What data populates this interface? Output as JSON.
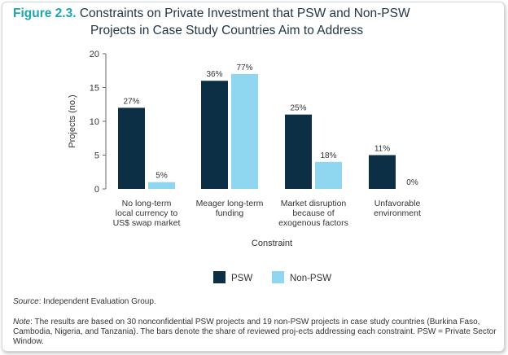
{
  "figure": {
    "label": "Figure 2.3.",
    "title_line1": "Constraints on Private Investment that PSW and Non-PSW",
    "title_line2": "Projects in Case Study Countries Aim to Address"
  },
  "chart_data": {
    "type": "bar",
    "ylabel": "Projects (no.)",
    "xlabel": "Constraint",
    "ylim": [
      0,
      20
    ],
    "yticks": [
      0,
      5,
      10,
      15,
      20
    ],
    "grid": false,
    "legend_position": "bottom-center",
    "categories": [
      [
        "No long-term",
        "local currency to",
        "US$ swap market"
      ],
      [
        "Meager long-term",
        "funding"
      ],
      [
        "Market disruption",
        "because of",
        "exogenous factors"
      ],
      [
        "Unfavorable",
        "environment"
      ]
    ],
    "series": [
      {
        "name": "PSW",
        "color": "#0d2f45",
        "values": [
          12,
          16,
          11,
          5
        ],
        "labels": [
          "27%",
          "36%",
          "25%",
          "11%"
        ]
      },
      {
        "name": "Non-PSW",
        "color": "#8fd7f0",
        "values": [
          1,
          17,
          4,
          0
        ],
        "labels": [
          "5%",
          "77%",
          "18%",
          "0%"
        ]
      }
    ]
  },
  "footer": {
    "source_label": "Source",
    "source_text": ": Independent Evaluation Group.",
    "note_label": "Note",
    "note_text": ": The results are based on 30 nonconfidential PSW projects and 19 non-PSW projects in case study countries (Burkina Faso, Cambodia, Nigeria, and Tanzania). The bars denote the share of reviewed proj-ects addressing each constraint. PSW = Private Sector Window."
  }
}
